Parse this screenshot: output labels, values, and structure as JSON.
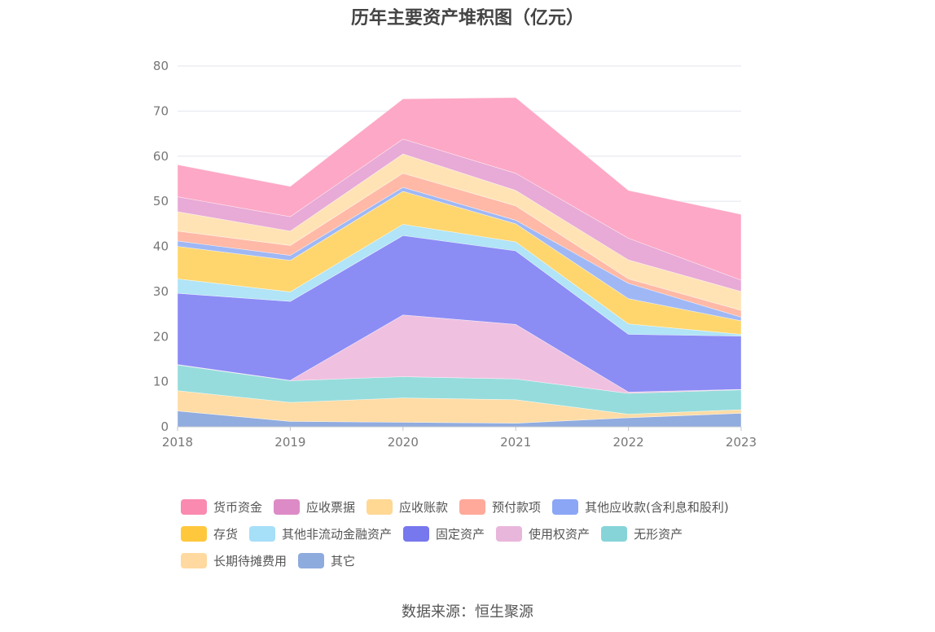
{
  "chart_data": {
    "type": "area",
    "stacked": true,
    "title": "历年主要资产堆积图（亿元）",
    "source": "数据来源：恒生聚源",
    "x": [
      "2018",
      "2019",
      "2020",
      "2021",
      "2022",
      "2023"
    ],
    "ylim": [
      0,
      80
    ],
    "yticks": [
      "0",
      "10",
      "20",
      "30",
      "40",
      "50",
      "60",
      "70",
      "80"
    ],
    "grid": true,
    "legend_position": "bottom",
    "series": [
      {
        "name": "其它",
        "color": "#91acdf",
        "values": [
          3.5,
          1.2,
          1.0,
          0.8,
          2.0,
          3.0
        ]
      },
      {
        "name": "长期待摊费用",
        "color": "#ffdca5",
        "values": [
          4.5,
          4.2,
          5.4,
          5.2,
          0.8,
          0.8
        ]
      },
      {
        "name": "无形资产",
        "color": "#96dcdc",
        "values": [
          5.7,
          4.8,
          4.7,
          4.6,
          4.6,
          4.4
        ]
      },
      {
        "name": "使用权资产",
        "color": "#f0c0e0",
        "values": [
          0.1,
          0.1,
          13.7,
          12.1,
          0.3,
          0.1
        ]
      },
      {
        "name": "固定资产",
        "color": "#8c8cf5",
        "values": [
          15.8,
          17.5,
          17.6,
          16.3,
          12.8,
          11.8
        ]
      },
      {
        "name": "其他非流动金融资产",
        "color": "#b0e4f6",
        "values": [
          3.2,
          2.1,
          2.5,
          2.0,
          2.3,
          0.4
        ]
      },
      {
        "name": "存货",
        "color": "#ffd66e",
        "values": [
          7.2,
          7.0,
          7.3,
          4.0,
          5.6,
          3.0
        ]
      },
      {
        "name": "其他应收款(含利息和股利)",
        "color": "#9fb8f5",
        "values": [
          1.2,
          1.1,
          0.9,
          0.8,
          3.4,
          0.8
        ]
      },
      {
        "name": "预付款项",
        "color": "#ffb9a6",
        "values": [
          2.2,
          2.2,
          3.1,
          3.2,
          1.0,
          1.5
        ]
      },
      {
        "name": "应收账款",
        "color": "#ffe3b5",
        "values": [
          4.3,
          3.2,
          4.3,
          3.4,
          4.2,
          4.2
        ]
      },
      {
        "name": "应收票据",
        "color": "#e8aad6",
        "values": [
          3.3,
          3.2,
          3.3,
          3.8,
          4.8,
          2.5
        ]
      },
      {
        "name": "货币资金",
        "color": "#fda8c6",
        "values": [
          7.1,
          6.7,
          8.9,
          16.8,
          10.6,
          14.6
        ]
      }
    ]
  },
  "legend": {
    "rows": [
      [
        {
          "label": "货币资金",
          "color": "#fa8ab0"
        },
        {
          "label": "应收票据",
          "color": "#dd8bc6"
        },
        {
          "label": "应收账款",
          "color": "#ffd894"
        },
        {
          "label": "预付款项",
          "color": "#ffa99a"
        },
        {
          "label": "其他应收款(含利息和股利)",
          "color": "#8aa6f5"
        }
      ],
      [
        {
          "label": "存货",
          "color": "#ffc83c"
        },
        {
          "label": "其他非流动金融资产",
          "color": "#a6dff8"
        },
        {
          "label": "固定资产",
          "color": "#7777ee"
        },
        {
          "label": "使用权资产",
          "color": "#e9b6db"
        },
        {
          "label": "无形资产",
          "color": "#86d4d8"
        }
      ],
      [
        {
          "label": "长期待摊费用",
          "color": "#ffd9a0"
        },
        {
          "label": "其它",
          "color": "#8eabde"
        }
      ]
    ]
  }
}
